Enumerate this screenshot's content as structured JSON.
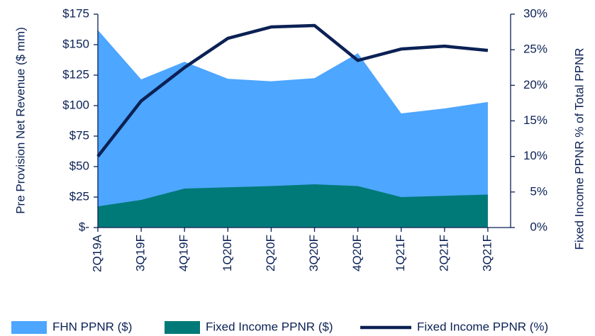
{
  "chart_data": {
    "type": "area-line",
    "y_label": "Pre Provision Net Revenue ($ mm)",
    "y2_label": "Fixed Income PPNR % of Total PPNR",
    "categories": [
      "2Q19A",
      "3Q19F",
      "4Q19F",
      "1Q20F",
      "2Q20F",
      "3Q20F",
      "4Q20F",
      "1Q21F",
      "2Q21F",
      "3Q21F"
    ],
    "series": [
      {
        "name": "FHN PPNR ($)",
        "color": "#4da6ff",
        "kind": "area",
        "values": [
          162,
          121.5,
          136,
          122,
          120,
          122.5,
          143,
          93.6,
          97.7,
          103
        ]
      },
      {
        "name": "Fixed Income PPNR ($)",
        "color": "#007a78",
        "kind": "area",
        "values": [
          17.4,
          22.7,
          32,
          33,
          34,
          35.5,
          34,
          25,
          26,
          27
        ]
      },
      {
        "name": "Fixed Income PPNR (%)",
        "color": "#0b2155",
        "kind": "line",
        "axis": "y2",
        "values": [
          10,
          17.8,
          22.5,
          26.6,
          28.2,
          28.4,
          23.5,
          25.1,
          25.5,
          24.9
        ]
      }
    ],
    "ylim": [
      0,
      175
    ],
    "yticks": [
      {
        "value": 0,
        "label": "$-"
      },
      {
        "value": 25,
        "label": "$25"
      },
      {
        "value": 50,
        "label": "$50"
      },
      {
        "value": 75,
        "label": "$75"
      },
      {
        "value": 100,
        "label": "$100"
      },
      {
        "value": 125,
        "label": "$125"
      },
      {
        "value": 150,
        "label": "$150"
      },
      {
        "value": 175,
        "label": "$175"
      }
    ],
    "y2lim": [
      0,
      30
    ],
    "y2ticks": [
      {
        "value": 0,
        "label": "0%"
      },
      {
        "value": 5,
        "label": "5%"
      },
      {
        "value": 10,
        "label": "10%"
      },
      {
        "value": 15,
        "label": "15%"
      },
      {
        "value": 20,
        "label": "20%"
      },
      {
        "value": 25,
        "label": "25%"
      },
      {
        "value": 30,
        "label": "30%"
      }
    ],
    "legend": "bottom"
  }
}
